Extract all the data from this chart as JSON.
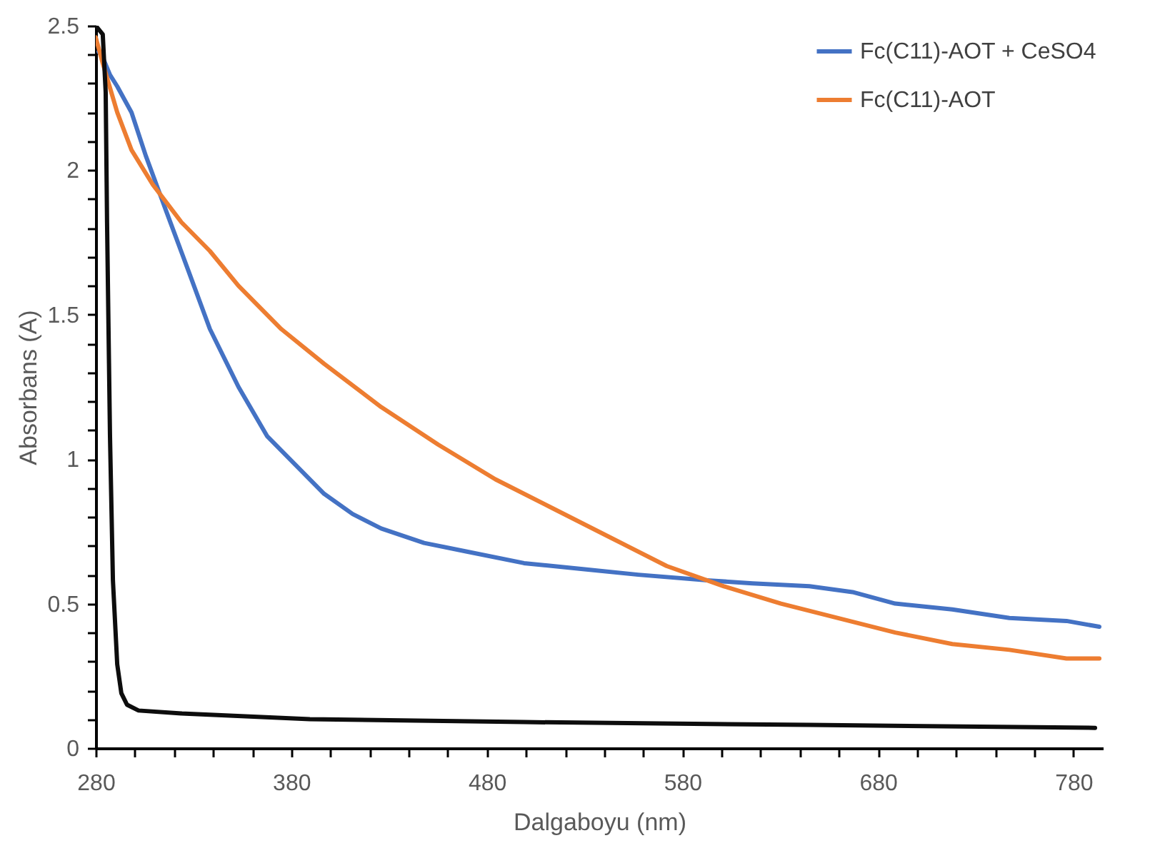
{
  "chart_data": {
    "type": "line",
    "xlabel": "Dalgaboyu (nm)",
    "ylabel": "Absorbans (A)",
    "xlim": [
      280,
      795
    ],
    "ylim": [
      0,
      2.5
    ],
    "xticks": [
      280,
      {
        "value": 300,
        "label": null
      },
      {
        "value": 320,
        "label": null
      },
      {
        "value": 340,
        "label": null
      },
      {
        "value": 360,
        "label": null
      },
      380,
      {
        "value": 400,
        "label": null
      },
      {
        "value": 420,
        "label": null
      },
      {
        "value": 440,
        "label": null
      },
      {
        "value": 460,
        "label": null
      },
      480,
      {
        "value": 500,
        "label": null
      },
      {
        "value": 520,
        "label": null
      },
      {
        "value": 540,
        "label": null
      },
      {
        "value": 560,
        "label": null
      },
      580,
      {
        "value": 600,
        "label": null
      },
      {
        "value": 620,
        "label": null
      },
      {
        "value": 640,
        "label": null
      },
      {
        "value": 660,
        "label": null
      },
      680,
      {
        "value": 700,
        "label": null
      },
      {
        "value": 720,
        "label": null
      },
      {
        "value": 740,
        "label": null
      },
      {
        "value": 760,
        "label": null
      },
      780
    ],
    "yticks": [
      0,
      {
        "value": 0.1,
        "label": null
      },
      {
        "value": 0.2,
        "label": null
      },
      {
        "value": 0.3,
        "label": null
      },
      {
        "value": 0.4,
        "label": null
      },
      0.5,
      {
        "value": 0.6,
        "label": null
      },
      {
        "value": 0.7,
        "label": null
      },
      {
        "value": 0.8,
        "label": null
      },
      {
        "value": 0.9,
        "label": null
      },
      1,
      {
        "value": 1.1,
        "label": null
      },
      {
        "value": 1.2,
        "label": null
      },
      {
        "value": 1.3,
        "label": null
      },
      {
        "value": 1.4,
        "label": null
      },
      1.5,
      {
        "value": 1.6,
        "label": null
      },
      {
        "value": 1.7,
        "label": null
      },
      {
        "value": 1.8,
        "label": null
      },
      {
        "value": 1.9,
        "label": null
      },
      2,
      {
        "value": 2.1,
        "label": null
      },
      {
        "value": 2.2,
        "label": null
      },
      {
        "value": 2.3,
        "label": null
      },
      {
        "value": 2.4,
        "label": null
      },
      2.5
    ],
    "grid": false,
    "legend": "top right",
    "marker": "none",
    "line_style": "solid",
    "series": [
      {
        "name": "Fc(C11)-AOT + CeSO4",
        "color": "#4472c4",
        "x": [
          281.5,
          283.6,
          287.3,
          291,
          298.3,
          305.6,
          316.5,
          327.5,
          338.4,
          353,
          367.6,
          382.2,
          396.8,
          411.4,
          426,
          447.9,
          469.8,
          499,
          528.2,
          557.4,
          593.9,
          615.8,
          645,
          667,
          688.8,
          718,
          747.2,
          776.4,
          793.2
        ],
        "values": [
          2.41,
          2.39,
          2.33,
          2.29,
          2.2,
          2.05,
          1.85,
          1.65,
          1.45,
          1.25,
          1.08,
          0.98,
          0.88,
          0.81,
          0.76,
          0.71,
          0.68,
          0.64,
          0.62,
          0.6,
          0.58,
          0.57,
          0.56,
          0.54,
          0.5,
          0.48,
          0.45,
          0.44,
          0.42
        ]
      },
      {
        "name": "Fc(C11)-AOT",
        "color": "#ed7d31",
        "x": [
          280,
          283.6,
          291,
          298.3,
          309.2,
          323.8,
          338.4,
          353,
          374.9,
          396.8,
          426,
          455.2,
          484.4,
          513.6,
          542.8,
          572,
          601.2,
          630.4,
          659.6,
          688.8,
          718,
          747.2,
          776.4,
          793.2
        ],
        "values": [
          2.46,
          2.37,
          2.2,
          2.07,
          1.95,
          1.82,
          1.72,
          1.6,
          1.45,
          1.33,
          1.18,
          1.05,
          0.93,
          0.83,
          0.73,
          0.63,
          0.56,
          0.5,
          0.45,
          0.4,
          0.36,
          0.34,
          0.31,
          0.31
        ]
      },
      {
        "color": "#0d0d0d",
        "x": [
          280,
          283.6,
          285.1,
          285.8,
          287.3,
          288.8,
          291,
          293.1,
          296,
          301.9,
          323.8,
          389.5,
          499,
          645,
          791
        ],
        "values": [
          2.5,
          2.47,
          2.27,
          1.82,
          1.08,
          0.58,
          0.29,
          0.19,
          0.15,
          0.13,
          0.12,
          0.1,
          0.09,
          0.08,
          0.07
        ]
      }
    ]
  }
}
